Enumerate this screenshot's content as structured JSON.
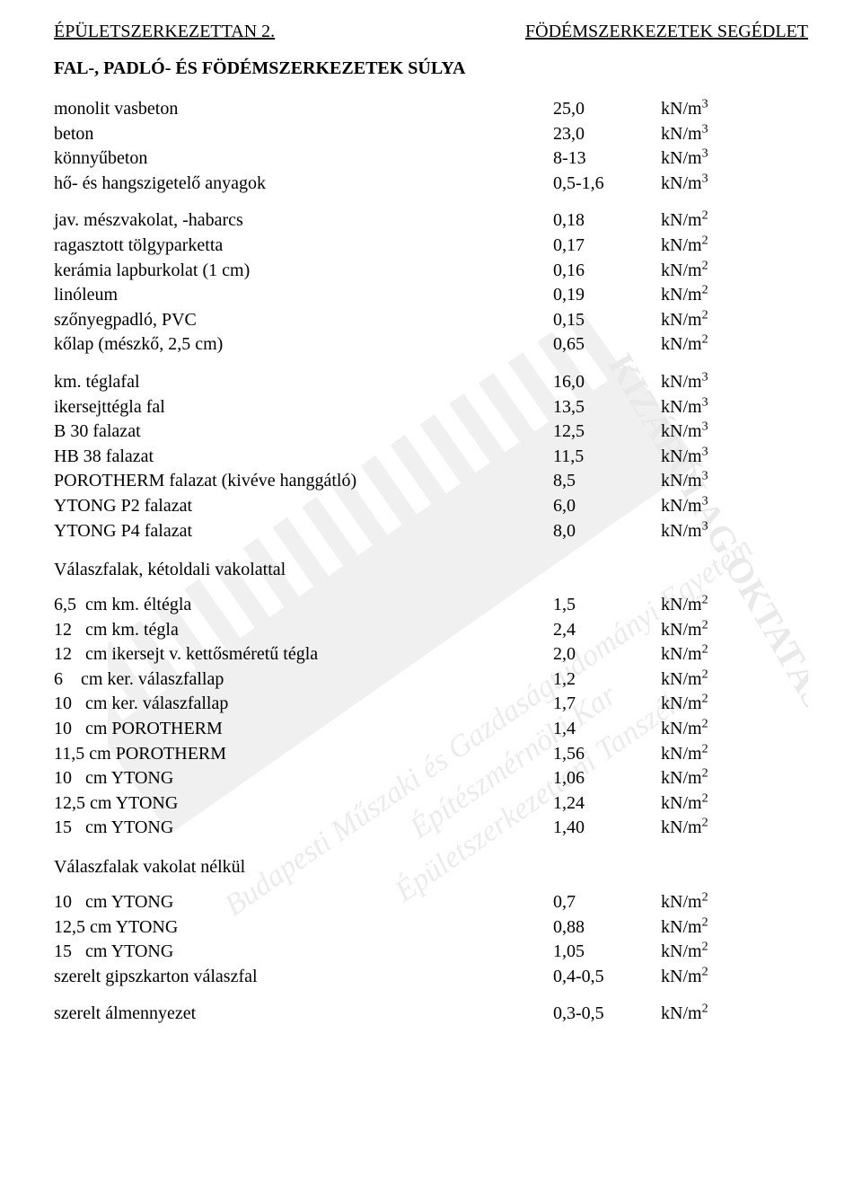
{
  "header": {
    "left": "ÉPÜLETSZERKEZETTAN 2.",
    "right": "FÖDÉMSZERKEZETEK SEGÉDLET"
  },
  "title": "FAL-, PADLÓ- ÉS FÖDÉMSZERKEZETEK SÚLYA",
  "group1": [
    {
      "label": "monolit vasbeton",
      "value": "25,0",
      "unit_base": "kN/m",
      "exp": "3"
    },
    {
      "label": "beton",
      "value": "23,0",
      "unit_base": "kN/m",
      "exp": "3"
    },
    {
      "label": "könnyűbeton",
      "value": "8-13",
      "unit_base": "kN/m",
      "exp": "3"
    },
    {
      "label": "hő- és hangszigetelő anyagok",
      "value": "0,5-1,6",
      "unit_base": "kN/m",
      "exp": "3"
    }
  ],
  "group2": [
    {
      "label": "jav. mészvakolat, -habarcs",
      "value": "0,18",
      "unit_base": "kN/m",
      "exp": "2"
    },
    {
      "label": "ragasztott tölgyparketta",
      "value": "0,17",
      "unit_base": "kN/m",
      "exp": "2"
    },
    {
      "label": "kerámia lapburkolat (1 cm)",
      "value": "0,16",
      "unit_base": "kN/m",
      "exp": "2"
    },
    {
      "label": "linóleum",
      "value": "0,19",
      "unit_base": "kN/m",
      "exp": "2"
    },
    {
      "label": "szőnyegpadló, PVC",
      "value": "0,15",
      "unit_base": "kN/m",
      "exp": "2"
    },
    {
      "label": "kőlap (mészkő, 2,5 cm)",
      "value": "0,65",
      "unit_base": "kN/m",
      "exp": "2"
    }
  ],
  "group3": [
    {
      "label": "km. téglafal",
      "value": "16,0",
      "unit_base": "kN/m",
      "exp": "3"
    },
    {
      "label": "ikersejttégla fal",
      "value": "13,5",
      "unit_base": "kN/m",
      "exp": "3"
    },
    {
      "label": "B 30 falazat",
      "value": "12,5",
      "unit_base": "kN/m",
      "exp": "3"
    },
    {
      "label": "HB 38 falazat",
      "value": "11,5",
      "unit_base": "kN/m",
      "exp": "3"
    },
    {
      "label": "POROTHERM falazat (kivéve hanggátló)",
      "value": "8,5",
      "unit_base": "kN/m",
      "exp": "3"
    },
    {
      "label": "YTONG P2 falazat",
      "value": "6,0",
      "unit_base": "kN/m",
      "exp": "3"
    },
    {
      "label": "YTONG P4 falazat",
      "value": "8,0",
      "unit_base": "kN/m",
      "exp": "3"
    }
  ],
  "subtitle4": "Válaszfalak, kétoldali vakolattal",
  "group4": [
    {
      "label": "6,5  cm km. éltégla",
      "value": "1,5",
      "unit_base": "kN/m",
      "exp": "2"
    },
    {
      "label": "12   cm km. tégla",
      "value": "2,4",
      "unit_base": "kN/m",
      "exp": "2"
    },
    {
      "label": "12   cm ikersejt v. kettősméretű tégla",
      "value": "2,0",
      "unit_base": "kN/m",
      "exp": "2"
    },
    {
      "label": "6    cm ker. válaszfallap",
      "value": "1,2",
      "unit_base": "kN/m",
      "exp": "2"
    },
    {
      "label": "10   cm ker. válaszfallap",
      "value": "1,7",
      "unit_base": "kN/m",
      "exp": "2"
    },
    {
      "label": "10   cm POROTHERM",
      "value": "1,4",
      "unit_base": "kN/m",
      "exp": "2"
    },
    {
      "label": "11,5 cm POROTHERM",
      "value": "1,56",
      "unit_base": "kN/m",
      "exp": "2"
    },
    {
      "label": "10   cm YTONG",
      "value": "1,06",
      "unit_base": "kN/m",
      "exp": "2"
    },
    {
      "label": "12,5 cm YTONG",
      "value": "1,24",
      "unit_base": "kN/m",
      "exp": "2"
    },
    {
      "label": "15   cm YTONG",
      "value": "1,40",
      "unit_base": "kN/m",
      "exp": "2"
    }
  ],
  "subtitle5": "Válaszfalak vakolat nélkül",
  "group5": [
    {
      "label": "10   cm YTONG",
      "value": "0,7",
      "unit_base": "kN/m",
      "exp": "2"
    },
    {
      "label": "12,5 cm YTONG",
      "value": "0,88",
      "unit_base": "kN/m",
      "exp": "2"
    },
    {
      "label": "15   cm YTONG",
      "value": "1,05",
      "unit_base": "kN/m",
      "exp": "2"
    },
    {
      "label": "szerelt gipszkarton válaszfal",
      "value": "0,4-0,5",
      "unit_base": "kN/m",
      "exp": "2"
    }
  ],
  "group6": [
    {
      "label": "szerelt álmennyezet",
      "value": "0,3-0,5",
      "unit_base": "kN/m",
      "exp": "2"
    }
  ]
}
